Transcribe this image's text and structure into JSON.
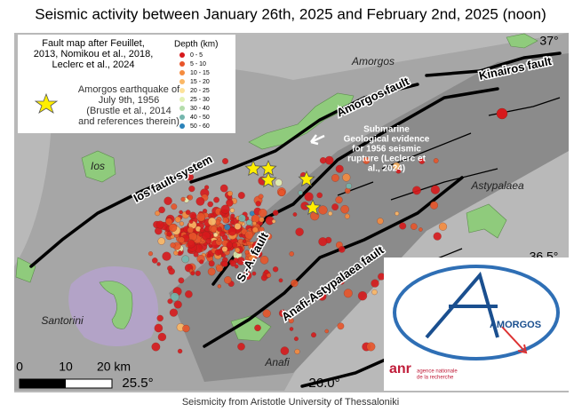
{
  "title": "Seismic activity between January 26th, 2025 and February 2nd, 2025 (noon)",
  "attribution": [
    "Fault map after Feuillet,",
    "2013, Nomikou et al., 2018,",
    "Leclerc et al., 2024"
  ],
  "depth_legend": {
    "title": "Depth (km)",
    "items": [
      {
        "label": "0 - 5",
        "color": "#d7191c"
      },
      {
        "label": "5 - 10",
        "color": "#e8552a"
      },
      {
        "label": "10 - 15",
        "color": "#f58c3f"
      },
      {
        "label": "15 - 20",
        "color": "#fbb866"
      },
      {
        "label": "20 - 25",
        "color": "#fde29a"
      },
      {
        "label": "25 - 30",
        "color": "#e3f1b4"
      },
      {
        "label": "30 - 40",
        "color": "#b4dcab"
      },
      {
        "label": "40 - 50",
        "color": "#74b6ad"
      },
      {
        "label": "50 - 60",
        "color": "#2b83ba"
      }
    ]
  },
  "star_legend": [
    "Amorgos earthquake of",
    "July 9th, 1956",
    "(Brustle et al., 2014",
    "and references therein)"
  ],
  "places": {
    "amorgos": "Amorgos",
    "ios": "Ios",
    "santorini": "Santorini",
    "anafi": "Anafi",
    "astypalaea": "Astypalaea"
  },
  "faults": {
    "amorgos": "Amorgos fault",
    "kinairos": "Kinairos fault",
    "ios": "Ios fault system",
    "sa": "S.-A. fault",
    "anafi": "Anafi-Astypalaea fault"
  },
  "annotation": [
    "Submarine",
    "Geological evidence",
    "for 1956 seismic",
    "rupture (Leclerc et",
    "al., 2024)"
  ],
  "scale": [
    "0",
    "10",
    "20 km"
  ],
  "coordinates": {
    "lat_top": "37°",
    "lat_mid": "36.5°",
    "lon_left": "25.5°",
    "lon_right": "26.0°"
  },
  "source": "Seismicity from Aristotle University of Thessaloniki",
  "logo": {
    "name": "AMORGOS",
    "agency": "anr",
    "agency_lines": [
      "agence nationale",
      "de la recherche"
    ]
  }
}
